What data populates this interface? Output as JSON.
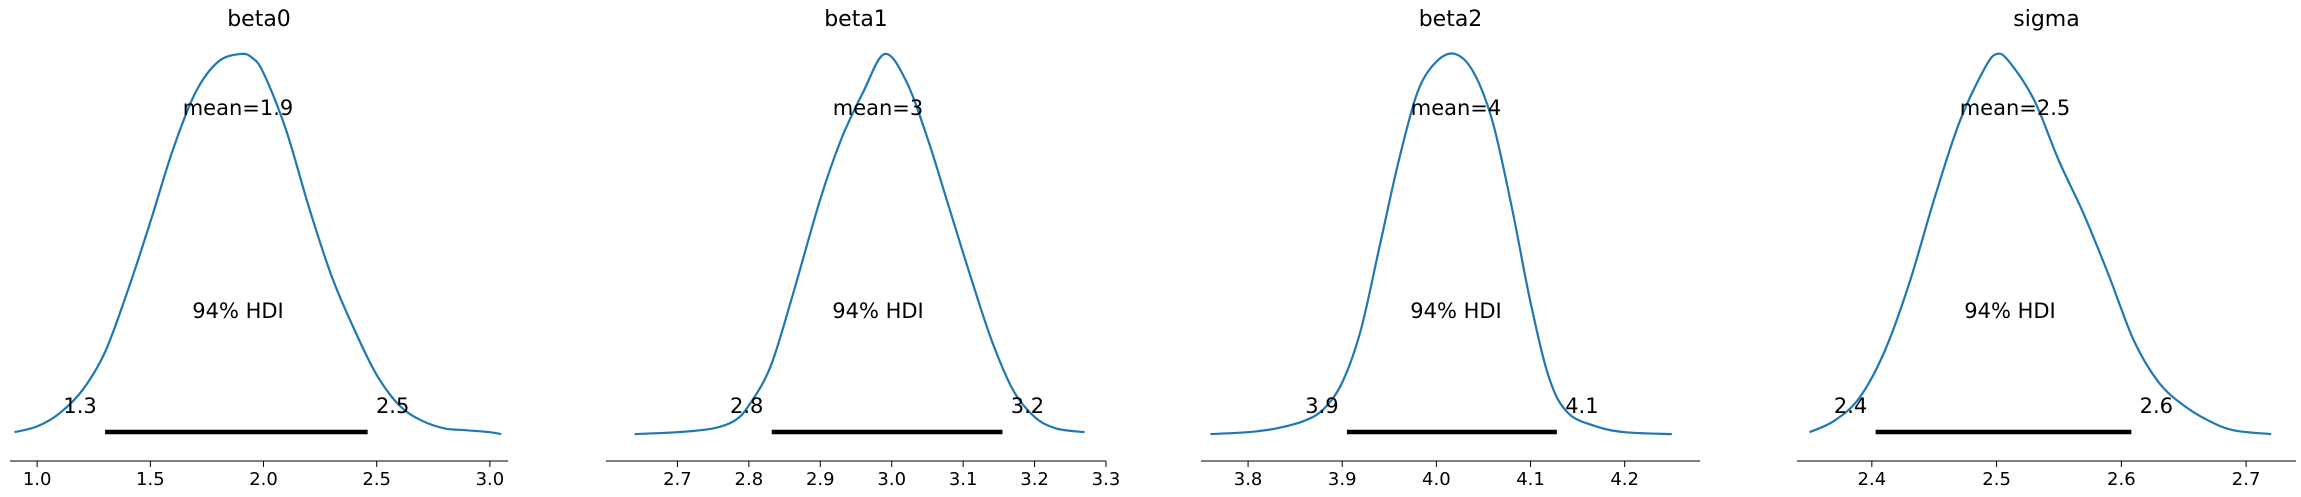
{
  "chart_data": [
    {
      "type": "line",
      "title": "beta0",
      "mean_label": "mean=1.9",
      "hdi_label": "94% HDI",
      "hdi": [
        1.3,
        2.46
      ],
      "hdi_tick_labels": [
        "1.3",
        "2.5"
      ],
      "xlim": [
        0.88,
        3.08
      ],
      "xticks": [
        1.0,
        1.5,
        2.0,
        2.5,
        3.0
      ],
      "xtick_labels": [
        "1.0",
        "1.5",
        "2.0",
        "2.5",
        "3.0"
      ],
      "x": [
        0.9,
        1.0,
        1.1,
        1.2,
        1.3,
        1.4,
        1.5,
        1.6,
        1.7,
        1.8,
        1.9,
        1.95,
        2.0,
        2.1,
        2.2,
        2.3,
        2.4,
        2.5,
        2.6,
        2.7,
        2.8,
        2.9,
        3.0,
        3.05
      ],
      "y": [
        0.01,
        0.025,
        0.06,
        0.12,
        0.22,
        0.38,
        0.56,
        0.75,
        0.9,
        0.98,
        1.0,
        0.99,
        0.95,
        0.8,
        0.6,
        0.42,
        0.28,
        0.16,
        0.08,
        0.04,
        0.02,
        0.015,
        0.01,
        0.005
      ]
    },
    {
      "type": "line",
      "title": "beta1",
      "mean_label": "mean=3",
      "hdi_label": "94% HDI",
      "hdi": [
        2.832,
        3.155
      ],
      "hdi_tick_labels": [
        "2.8",
        "3.2"
      ],
      "xlim": [
        2.6,
        3.3
      ],
      "xticks": [
        2.7,
        2.8,
        2.9,
        3.0,
        3.1,
        3.2,
        3.3
      ],
      "xtick_labels": [
        "2.7",
        "2.8",
        "2.9",
        "3.0",
        "3.1",
        "3.2",
        "3.3"
      ],
      "x": [
        2.64,
        2.7,
        2.75,
        2.78,
        2.8,
        2.83,
        2.86,
        2.9,
        2.93,
        2.96,
        2.99,
        3.02,
        3.05,
        3.08,
        3.11,
        3.14,
        3.17,
        3.2,
        3.23,
        3.27
      ],
      "y": [
        0.005,
        0.01,
        0.02,
        0.04,
        0.08,
        0.18,
        0.36,
        0.62,
        0.78,
        0.9,
        1.0,
        0.93,
        0.78,
        0.6,
        0.42,
        0.25,
        0.12,
        0.05,
        0.02,
        0.01
      ]
    },
    {
      "type": "line",
      "title": "beta2",
      "mean_label": "mean=4",
      "hdi_label": "94% HDI",
      "hdi": [
        3.905,
        4.128
      ],
      "hdi_tick_labels": [
        "3.9",
        "4.1"
      ],
      "xlim": [
        3.75,
        4.28
      ],
      "xticks": [
        3.8,
        3.9,
        4.0,
        4.1,
        4.2
      ],
      "xtick_labels": [
        "3.8",
        "3.9",
        "4.0",
        "4.1",
        "4.2"
      ],
      "x": [
        3.76,
        3.8,
        3.83,
        3.86,
        3.88,
        3.9,
        3.92,
        3.94,
        3.96,
        3.98,
        4.0,
        4.02,
        4.04,
        4.06,
        4.08,
        4.1,
        4.12,
        4.14,
        4.17,
        4.2,
        4.25
      ],
      "y": [
        0.005,
        0.01,
        0.02,
        0.04,
        0.07,
        0.14,
        0.28,
        0.5,
        0.72,
        0.9,
        0.98,
        1.0,
        0.95,
        0.82,
        0.6,
        0.35,
        0.15,
        0.06,
        0.025,
        0.01,
        0.005
      ]
    },
    {
      "type": "line",
      "title": "sigma",
      "mean_label": "mean=2.5",
      "hdi_label": "94% HDI",
      "hdi": [
        2.403,
        2.608
      ],
      "hdi_tick_labels": [
        "2.4",
        "2.6"
      ],
      "xlim": [
        2.34,
        2.74
      ],
      "xticks": [
        2.4,
        2.5,
        2.6,
        2.7
      ],
      "xtick_labels": [
        "2.4",
        "2.5",
        "2.6",
        "2.7"
      ],
      "x": [
        2.35,
        2.37,
        2.39,
        2.41,
        2.43,
        2.45,
        2.47,
        2.49,
        2.5,
        2.51,
        2.53,
        2.55,
        2.57,
        2.59,
        2.61,
        2.63,
        2.65,
        2.67,
        2.69,
        2.72
      ],
      "y": [
        0.01,
        0.04,
        0.1,
        0.22,
        0.4,
        0.62,
        0.82,
        0.96,
        1.0,
        0.98,
        0.88,
        0.72,
        0.58,
        0.42,
        0.25,
        0.14,
        0.08,
        0.04,
        0.015,
        0.005
      ]
    }
  ]
}
